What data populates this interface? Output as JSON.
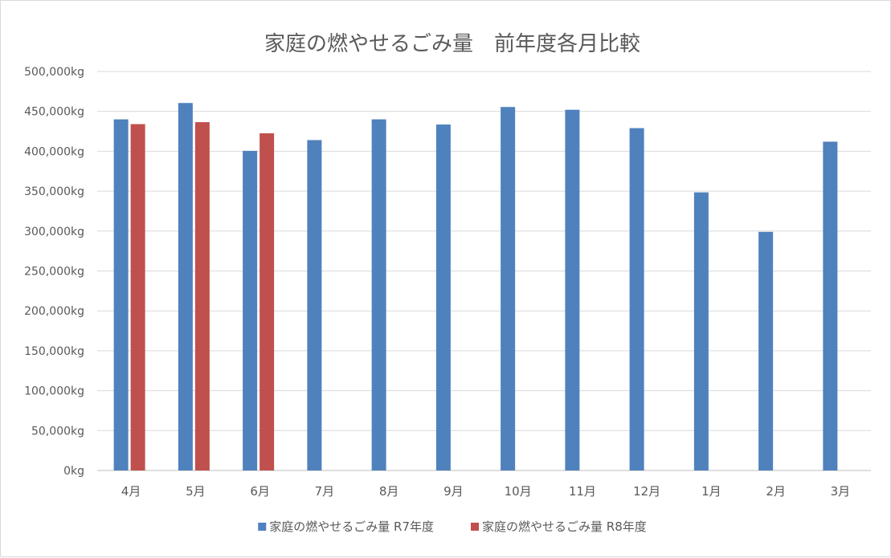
{
  "chart_data": {
    "type": "bar",
    "title": "家庭の燃やせるごみ量　前年度各月比較",
    "categories": [
      "4月",
      "5月",
      "6月",
      "7月",
      "8月",
      "9月",
      "10月",
      "11月",
      "12月",
      "1月",
      "2月",
      "3月"
    ],
    "series": [
      {
        "name": "家庭の燃やせるごみ量 R7年度",
        "color": "#4f81bd",
        "values": [
          440000,
          460500,
          400500,
          414000,
          440000,
          433500,
          455500,
          452000,
          429000,
          348500,
          299000,
          412000
        ]
      },
      {
        "name": "家庭の燃やせるごみ量 R8年度",
        "color": "#c0504d",
        "values": [
          434000,
          436500,
          422500,
          null,
          null,
          null,
          null,
          null,
          null,
          null,
          null,
          null
        ]
      }
    ],
    "ylim": [
      0,
      500000
    ],
    "ytick_labels": [
      "0kg",
      "50,000kg",
      "100,000kg",
      "150,000kg",
      "200,000kg",
      "250,000kg",
      "300,000kg",
      "350,000kg",
      "400,000kg",
      "450,000kg",
      "500,000kg"
    ],
    "ytick_values": [
      0,
      50000,
      100000,
      150000,
      200000,
      250000,
      300000,
      350000,
      400000,
      450000,
      500000
    ],
    "grid": true,
    "legend_position": "bottom"
  }
}
